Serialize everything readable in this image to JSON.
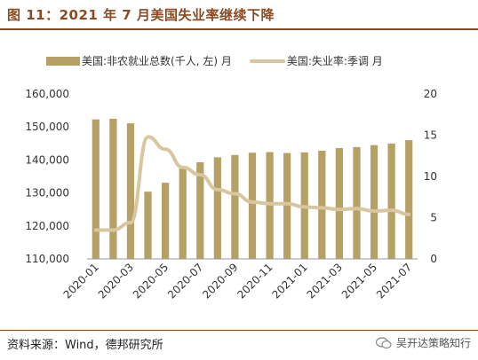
{
  "title": "图 11：2021 年 7 月美国失业率继续下降",
  "source": "资料来源：Wind，德邦研究所",
  "brand": "吴开达策略知行",
  "colors": {
    "bar": "#b5a165",
    "line": "#d8c6a0",
    "title": "#8a4b22"
  },
  "chart_data": {
    "type": "bar",
    "categories": [
      "2020-01",
      "2020-02",
      "2020-03",
      "2020-04",
      "2020-05",
      "2020-06",
      "2020-07",
      "2020-08",
      "2020-09",
      "2020-10",
      "2020-11",
      "2020-12",
      "2021-01",
      "2021-02",
      "2021-03",
      "2021-04",
      "2021-05",
      "2021-06",
      "2021-07"
    ],
    "x_tick_labels": [
      "2020-01",
      "2020-03",
      "2020-05",
      "2020-07",
      "2020-09",
      "2020-11",
      "2021-01",
      "2021-03",
      "2021-05",
      "2021-07"
    ],
    "series": [
      {
        "name": "美国:非农就业总数(千人, 左) 月",
        "axis": "left",
        "type": "bar",
        "values": [
          152300,
          152500,
          151100,
          130400,
          133100,
          137800,
          139300,
          140800,
          141500,
          142200,
          142400,
          142100,
          142300,
          142800,
          143600,
          143900,
          144500,
          145000,
          146000
        ]
      },
      {
        "name": "美国:失业率:季调 月",
        "axis": "right",
        "type": "line",
        "values": [
          3.5,
          3.5,
          4.4,
          14.8,
          13.3,
          11.1,
          10.2,
          8.4,
          7.9,
          6.9,
          6.7,
          6.7,
          6.3,
          6.2,
          6.0,
          6.1,
          5.8,
          5.9,
          5.4
        ]
      }
    ],
    "y_left": {
      "ticks": [
        "110,000",
        "120,000",
        "130,000",
        "140,000",
        "150,000",
        "160,000"
      ],
      "min": 110000,
      "max": 160000
    },
    "y_right": {
      "ticks": [
        "0",
        "5",
        "10",
        "15",
        "20"
      ],
      "min": 0,
      "max": 20
    },
    "grid": false,
    "legend_position": "top"
  }
}
